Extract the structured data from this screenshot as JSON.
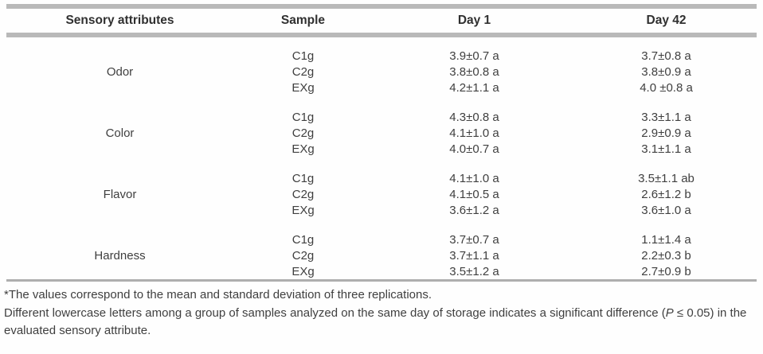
{
  "table": {
    "headers": [
      "Sensory attributes",
      "Sample",
      "Day 1",
      "Day 42"
    ],
    "groups": [
      {
        "attribute": "Odor",
        "rows": [
          {
            "sample": "C1g",
            "day1": "3.9±0.7 a",
            "day42": "3.7±0.8 a"
          },
          {
            "sample": "C2g",
            "day1": "3.8±0.8 a",
            "day42": "3.8±0.9 a"
          },
          {
            "sample": "EXg",
            "day1": "4.2±1.1 a",
            "day42": "4.0 ±0.8 a"
          }
        ]
      },
      {
        "attribute": "Color",
        "rows": [
          {
            "sample": "C1g",
            "day1": "4.3±0.8 a",
            "day42": "3.3±1.1 a"
          },
          {
            "sample": "C2g",
            "day1": "4.1±1.0 a",
            "day42": "2.9±0.9 a"
          },
          {
            "sample": "EXg",
            "day1": "4.0±0.7 a",
            "day42": "3.1±1.1 a"
          }
        ]
      },
      {
        "attribute": "Flavor",
        "rows": [
          {
            "sample": "C1g",
            "day1": "4.1±1.0 a",
            "day42": "3.5±1.1 ab"
          },
          {
            "sample": "C2g",
            "day1": "4.1±0.5 a",
            "day42": "2.6±1.2 b"
          },
          {
            "sample": "EXg",
            "day1": "3.6±1.2 a",
            "day42": "3.6±1.0 a"
          }
        ]
      },
      {
        "attribute": "Hardness",
        "rows": [
          {
            "sample": "C1g",
            "day1": "3.7±0.7 a",
            "day42": "1.1±1.4 a"
          },
          {
            "sample": "C2g",
            "day1": "3.7±1.1 a",
            "day42": "2.2±0.3 b"
          },
          {
            "sample": "EXg",
            "day1": "3.5±1.2 a",
            "day42": "2.7±0.9 b"
          }
        ]
      }
    ]
  },
  "footnotes": {
    "line1": "*The values correspond to the mean and standard deviation of three replications.",
    "line2_pre": "Different lowercase letters among a group of samples analyzed on the same day of storage indicates a significant difference (",
    "line2_italic": "P",
    "line2_post": " ≤ 0.05) in the",
    "line3": "evaluated sensory attribute."
  },
  "colors": {
    "rule_gray": "#b9b9b9",
    "bottom_rule_gray": "#aeaeae",
    "text": "#3f3f3f",
    "header_text": "#303030"
  }
}
